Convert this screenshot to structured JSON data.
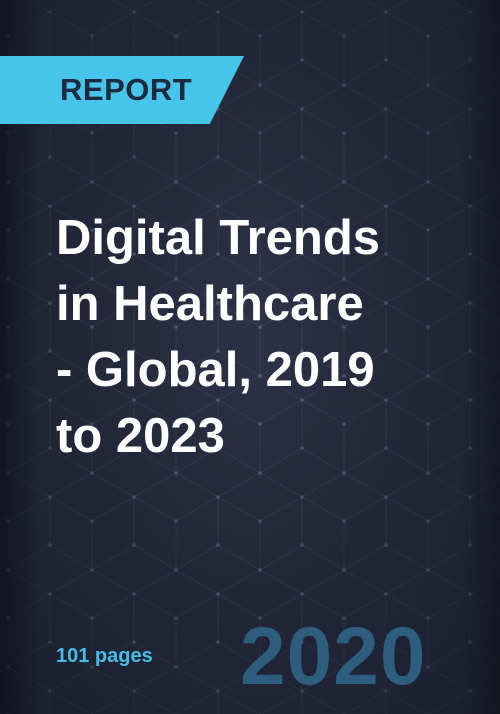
{
  "report_banner": {
    "label": "REPORT",
    "color": "#47c4ea"
  },
  "title": {
    "lines": [
      "Digital Trends",
      "in Healthcare",
      "- Global, 2019",
      "to 2023"
    ]
  },
  "footer": {
    "pages": "101 pages",
    "year": "2020"
  },
  "colors": {
    "background": "#23273a",
    "title": "#ffffff",
    "pages_text": "#46bde6",
    "year_text": "#2e5e7e"
  }
}
